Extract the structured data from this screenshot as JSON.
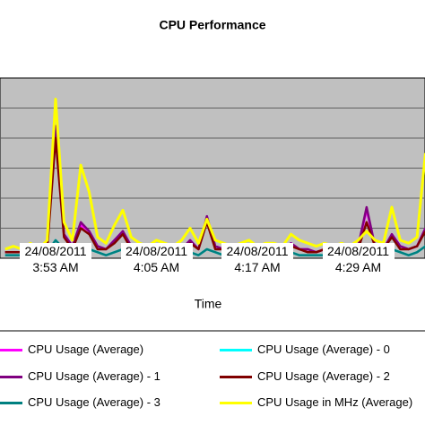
{
  "chart_data": {
    "type": "line",
    "title": "CPU Performance",
    "x_label": "Time",
    "categories": [
      null,
      null,
      null,
      null,
      null,
      null,
      "24/08/2011 3:53 AM",
      null,
      null,
      null,
      null,
      null,
      null,
      null,
      null,
      null,
      null,
      null,
      "24/08/2011 4:05 AM",
      null,
      null,
      null,
      null,
      null,
      null,
      null,
      null,
      null,
      null,
      null,
      "24/08/2011 4:17 AM",
      null,
      null,
      null,
      null,
      null,
      null,
      null,
      null,
      null,
      null,
      null,
      "24/08/2011 4:29 AM",
      null,
      null,
      null,
      null,
      null,
      null,
      null,
      null
    ],
    "ylim": [
      0,
      6
    ],
    "yticks": [
      1,
      2,
      3,
      4,
      5
    ],
    "grid": true,
    "series": [
      {
        "name": "CPU Usage (Average)",
        "color": "#ff00ff",
        "values": [
          0.2,
          0.2,
          0.2,
          0.3,
          0.2,
          0.4,
          4.3,
          0.8,
          0.4,
          1.1,
          0.9,
          0.4,
          0.3,
          0.6,
          0.9,
          0.4,
          0.3,
          0.2,
          0.3,
          0.3,
          0.2,
          0.3,
          0.6,
          0.3,
          1.3,
          0.4,
          0.3,
          0.2,
          0.3,
          0.3,
          0.2,
          0.3,
          0.3,
          0.2,
          0.5,
          0.3,
          0.3,
          0.2,
          0.3,
          0.2,
          0.3,
          0.2,
          0.4,
          1.6,
          0.4,
          0.3,
          0.8,
          0.4,
          0.3,
          0.4,
          1.0
        ]
      },
      {
        "name": "CPU Usage (Average) - 0",
        "color": "#00ffff",
        "values": [
          0.1,
          0.1,
          0.1,
          0.1,
          0.1,
          0.2,
          0.6,
          0.3,
          0.2,
          0.4,
          0.3,
          0.2,
          0.1,
          0.2,
          0.3,
          0.2,
          0.1,
          0.1,
          0.2,
          0.1,
          0.1,
          0.1,
          0.2,
          0.1,
          0.3,
          0.2,
          0.1,
          0.1,
          0.1,
          0.2,
          0.1,
          0.1,
          0.1,
          0.1,
          0.2,
          0.1,
          0.1,
          0.1,
          0.1,
          0.1,
          0.1,
          0.1,
          0.2,
          0.3,
          0.2,
          0.1,
          0.3,
          0.2,
          0.1,
          0.2,
          0.4
        ]
      },
      {
        "name": "CPU Usage (Average) - 1",
        "color": "#800080",
        "values": [
          0.2,
          0.2,
          0.2,
          0.3,
          0.2,
          0.4,
          4.4,
          0.8,
          0.4,
          1.2,
          0.9,
          0.4,
          0.3,
          0.6,
          0.9,
          0.4,
          0.3,
          0.2,
          0.3,
          0.3,
          0.2,
          0.3,
          0.6,
          0.3,
          1.4,
          0.4,
          0.3,
          0.2,
          0.3,
          0.3,
          0.2,
          0.3,
          0.3,
          0.2,
          0.5,
          0.3,
          0.3,
          0.2,
          0.3,
          0.2,
          0.3,
          0.2,
          0.4,
          1.7,
          0.4,
          0.3,
          0.8,
          0.4,
          0.3,
          0.4,
          1.0
        ]
      },
      {
        "name": "CPU Usage (Average) - 2",
        "color": "#800000",
        "values": [
          0.2,
          0.2,
          0.2,
          0.2,
          0.2,
          0.3,
          4.0,
          0.7,
          0.3,
          1.0,
          0.8,
          0.3,
          0.3,
          0.5,
          0.8,
          0.3,
          0.3,
          0.2,
          0.3,
          0.2,
          0.2,
          0.3,
          0.5,
          0.3,
          1.2,
          0.3,
          0.3,
          0.2,
          0.2,
          0.3,
          0.2,
          0.3,
          0.2,
          0.2,
          0.4,
          0.3,
          0.2,
          0.2,
          0.3,
          0.2,
          0.2,
          0.2,
          0.3,
          1.2,
          0.4,
          0.3,
          0.7,
          0.3,
          0.3,
          0.4,
          0.9
        ]
      },
      {
        "name": "CPU Usage (Average) - 3",
        "color": "#008080",
        "values": [
          0.1,
          0.1,
          0.1,
          0.1,
          0.1,
          0.2,
          0.6,
          0.3,
          0.2,
          0.4,
          0.3,
          0.2,
          0.1,
          0.2,
          0.3,
          0.2,
          0.1,
          0.1,
          0.2,
          0.1,
          0.1,
          0.1,
          0.2,
          0.1,
          0.3,
          0.2,
          0.1,
          0.1,
          0.1,
          0.2,
          0.1,
          0.1,
          0.1,
          0.1,
          0.2,
          0.1,
          0.1,
          0.1,
          0.1,
          0.1,
          0.1,
          0.1,
          0.2,
          0.3,
          0.2,
          0.1,
          0.3,
          0.2,
          0.1,
          0.2,
          0.4
        ]
      },
      {
        "name": "CPU Usage in MHz (Average)",
        "color": "#ffff00",
        "values": [
          0.3,
          0.4,
          0.3,
          0.5,
          0.3,
          0.6,
          5.3,
          1.2,
          0.6,
          3.1,
          2.2,
          0.7,
          0.5,
          1.1,
          1.6,
          0.7,
          0.5,
          0.4,
          0.6,
          0.5,
          0.4,
          0.6,
          1.0,
          0.5,
          1.3,
          0.6,
          0.5,
          0.4,
          0.5,
          0.6,
          0.4,
          0.5,
          0.5,
          0.4,
          0.8,
          0.6,
          0.5,
          0.4,
          0.5,
          0.4,
          0.5,
          0.4,
          0.6,
          0.9,
          0.6,
          0.5,
          1.7,
          0.6,
          0.5,
          0.7,
          3.5
        ]
      }
    ]
  }
}
